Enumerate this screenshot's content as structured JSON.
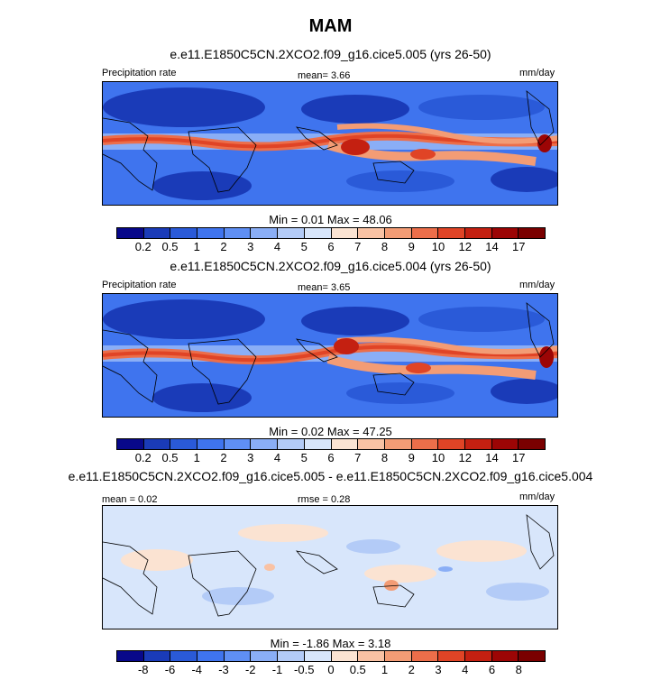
{
  "title": "MAM",
  "panels": [
    {
      "id": "p1",
      "case": "e.e11.E1850C5CN.2XCO2.f09_g16.cice5.005 (yrs 26-50)",
      "left_label": "Precipitation rate",
      "center_label": "mean=   3.66",
      "right_label": "mm/day",
      "stats": "Min =   0.01 Max =  48.06",
      "colormap": "abs",
      "tick_labels": [
        "0.2",
        "0.5",
        "1",
        "2",
        "3",
        "4",
        "5",
        "6",
        "7",
        "8",
        "9",
        "10",
        "12",
        "14",
        "17"
      ]
    },
    {
      "id": "p2",
      "case": "e.e11.E1850C5CN.2XCO2.f09_g16.cice5.004 (yrs 26-50)",
      "left_label": "Precipitation rate",
      "center_label": "mean=   3.65",
      "right_label": "mm/day",
      "stats": "Min =   0.02 Max =  47.25",
      "colormap": "abs",
      "tick_labels": [
        "0.2",
        "0.5",
        "1",
        "2",
        "3",
        "4",
        "5",
        "6",
        "7",
        "8",
        "9",
        "10",
        "12",
        "14",
        "17"
      ]
    },
    {
      "id": "p3",
      "case": "e.e11.E1850C5CN.2XCO2.f09_g16.cice5.005 - e.e11.E1850C5CN.2XCO2.f09_g16.cice5.004",
      "left_label": "mean =   0.02",
      "center_label": "rmse =   0.28",
      "right_label": "mm/day",
      "stats": "Min =  -1.86 Max =   3.18",
      "colormap": "diff",
      "tick_labels": [
        "-8",
        "-6",
        "-4",
        "-3",
        "-2",
        "-1",
        "-0.5",
        "0",
        "0.5",
        "1",
        "2",
        "3",
        "4",
        "6",
        "8"
      ]
    }
  ],
  "colors": {
    "abs": [
      "#08088a",
      "#1a3bb8",
      "#2a5ad8",
      "#3f74ee",
      "#5f8ff4",
      "#8aaef6",
      "#b3cbf7",
      "#d8e6fb",
      "#fbe3d2",
      "#f9c2a4",
      "#f39c75",
      "#ec6e4a",
      "#e04426",
      "#c42011",
      "#9c0505",
      "#7a0000"
    ],
    "diff": [
      "#08088a",
      "#1a3bb8",
      "#2a5ad8",
      "#3f74ee",
      "#5f8ff4",
      "#8aaef6",
      "#b3cbf7",
      "#d8e6fb",
      "#fbe3d2",
      "#f9c2a4",
      "#f39c75",
      "#ec6e4a",
      "#e04426",
      "#c42011",
      "#9c0505",
      "#7a0000"
    ]
  }
}
